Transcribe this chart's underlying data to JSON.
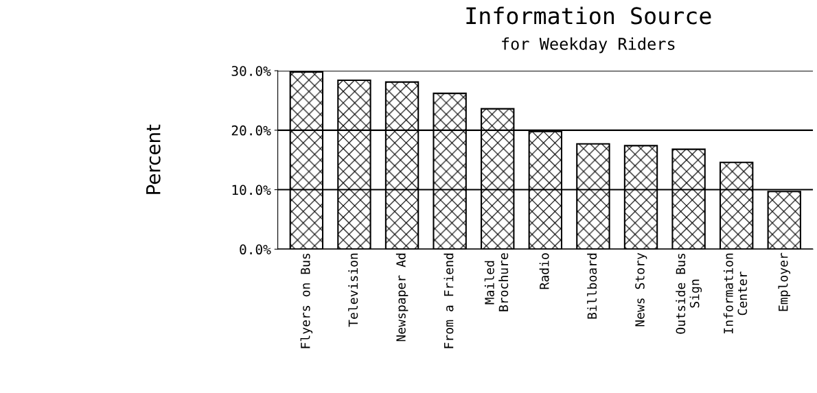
{
  "chart_data": {
    "type": "bar",
    "title": "Information Source",
    "subtitle": "for Weekday Riders",
    "ylabel": "Percent",
    "categories": [
      "Flyers on Bus",
      "Television",
      "Newspaper Ad",
      "From a Friend",
      "Mailed\nBrochure",
      "Radio",
      "Billboard",
      "News Story",
      "Outside Bus\nSign",
      "Information\nCenter",
      "Employer"
    ],
    "values": [
      29.8,
      28.4,
      28.1,
      26.2,
      23.6,
      19.8,
      17.7,
      17.4,
      16.8,
      14.6,
      9.7
    ],
    "color": "#000000",
    "ylim": [
      0,
      30
    ],
    "yticks": [
      {
        "value": 0,
        "label": "0.0%"
      },
      {
        "value": 10,
        "label": "10.0%"
      },
      {
        "value": 20,
        "label": "20.0%"
      },
      {
        "value": 30,
        "label": "30.0%"
      }
    ],
    "grid": "y"
  }
}
